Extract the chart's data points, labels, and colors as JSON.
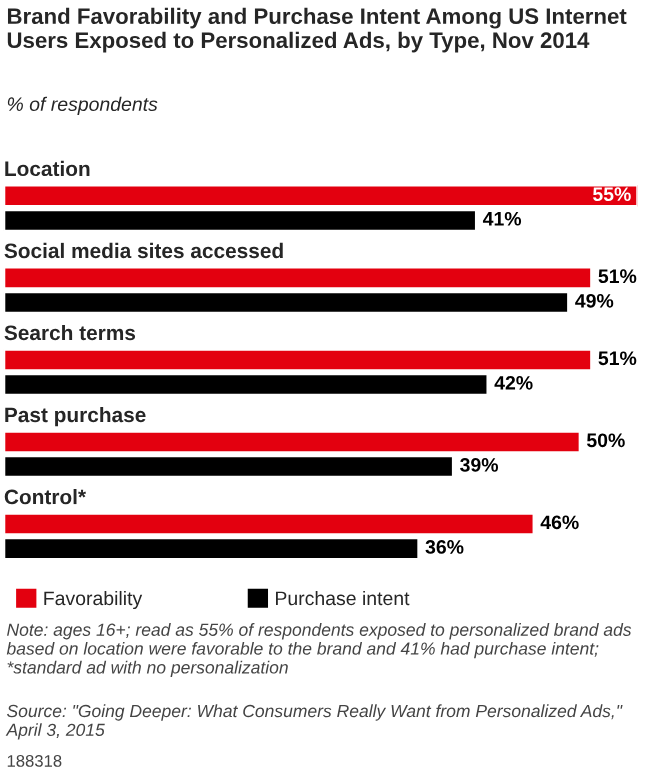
{
  "chart_data": {
    "type": "bar",
    "orientation": "horizontal",
    "title": "Brand Favorability and Purchase Intent Among US Internet Users Exposed to Personalized Ads, by Type, Nov 2014",
    "subtitle": "% of respondents",
    "categories": [
      "Location",
      "Social media sites accessed",
      "Search terms",
      "Past purchase",
      "Control*"
    ],
    "series": [
      {
        "name": "Favorability",
        "color": "#e3000f",
        "values": [
          55,
          51,
          51,
          50,
          46
        ],
        "value_labels": [
          "55%",
          "51%",
          "51%",
          "50%",
          "46%"
        ]
      },
      {
        "name": "Purchase intent",
        "color": "#000000",
        "values": [
          41,
          49,
          42,
          39,
          36
        ],
        "value_labels": [
          "41%",
          "49%",
          "42%",
          "39%",
          "36%"
        ]
      }
    ],
    "legend": "bottom",
    "annotations": [
      "Note: ages 16+; read as 55% of respondents exposed to personalized brand ads based on location were favorable to the brand and 41% had purchase intent; *standard ad with no personalization",
      "Source: \"Going Deeper: What Consumers Really Want from Personalized Ads,\" April 3, 2015",
      "188318"
    ]
  }
}
